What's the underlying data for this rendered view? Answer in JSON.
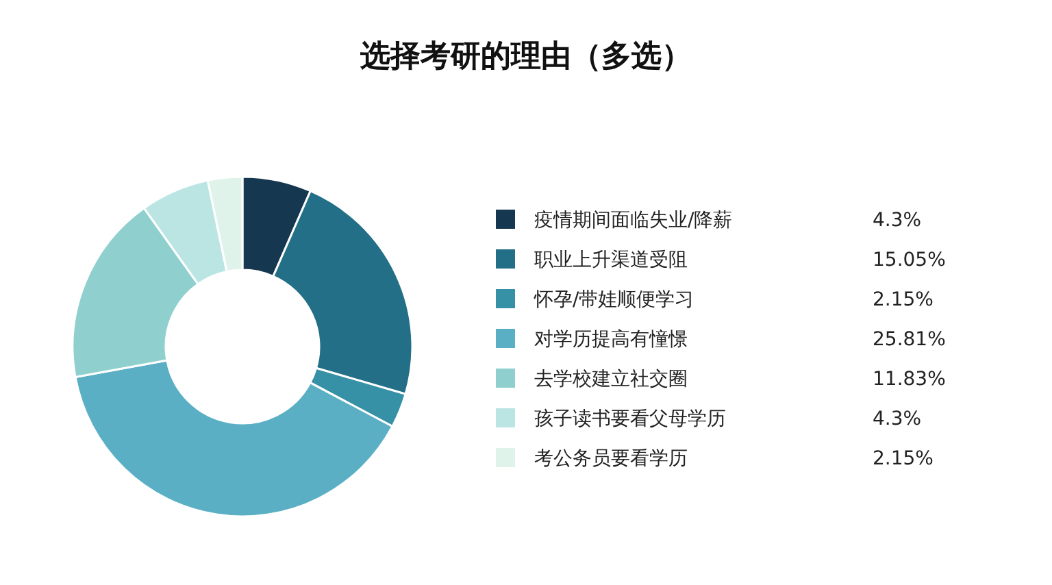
{
  "chart_data": {
    "type": "donut",
    "title": "选择考研的理由（多选）",
    "categories": [
      "疫情期间面临失业/降薪",
      "职业上升渠道受阻",
      "怀孕/带娃顺便学习",
      "对学历提高有憧憬",
      "去学校建立社交圈",
      "孩子读书要看父母学历",
      "考公务员要看学历"
    ],
    "values": [
      4.3,
      15.05,
      2.15,
      25.81,
      11.83,
      4.3,
      2.15
    ],
    "colors": [
      "#15374f",
      "#226f87",
      "#3690a6",
      "#5aafc5",
      "#8fd0cf",
      "#bbe5e3",
      "#dff3ea"
    ],
    "value_labels": [
      "4.3%",
      "15.05%",
      "2.15%",
      "25.81%",
      "11.83%",
      "4.3%",
      "2.15%"
    ],
    "legend": "right"
  }
}
